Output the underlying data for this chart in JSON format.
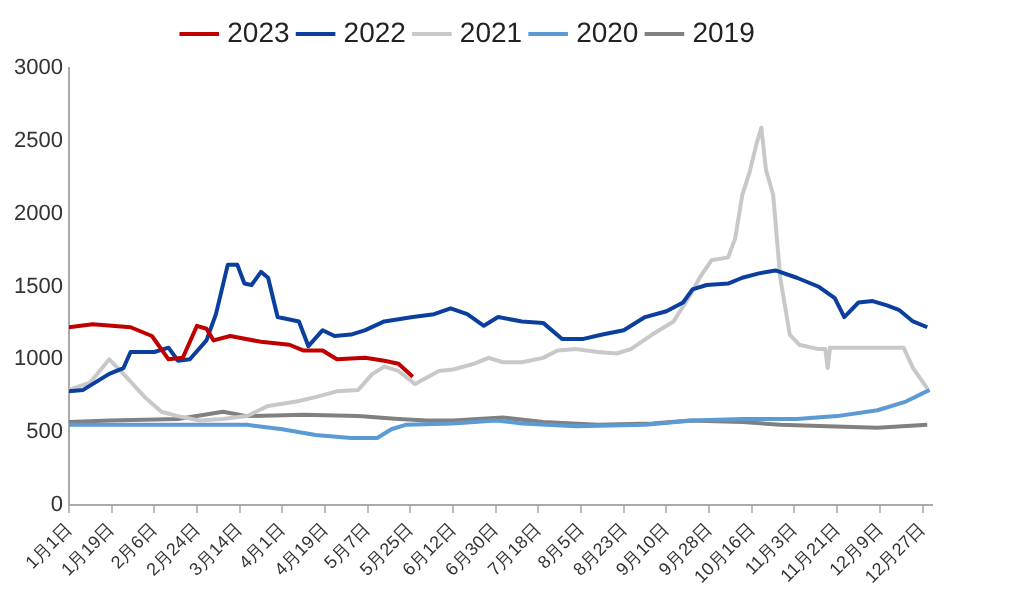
{
  "chart_data": {
    "type": "line",
    "marker": "none",
    "line_style": "solid",
    "legend": "top",
    "grid": false,
    "xlim": [
      "--01-01",
      "--12-31"
    ],
    "ylim": [
      0,
      3000
    ],
    "yticks": [
      0,
      500,
      1000,
      1500,
      2000,
      2500,
      3000
    ],
    "xticks": [
      {
        "value": "--01-01",
        "label": "1月1日"
      },
      {
        "value": "--01-19",
        "label": "1月19日"
      },
      {
        "value": "--02-06",
        "label": "2月6日"
      },
      {
        "value": "--02-24",
        "label": "2月24日"
      },
      {
        "value": "--03-14",
        "label": "3月14日"
      },
      {
        "value": "--04-01",
        "label": "4月1日"
      },
      {
        "value": "--04-19",
        "label": "4月19日"
      },
      {
        "value": "--05-07",
        "label": "5月7日"
      },
      {
        "value": "--05-25",
        "label": "5月25日"
      },
      {
        "value": "--06-12",
        "label": "6月12日"
      },
      {
        "value": "--06-30",
        "label": "6月30日"
      },
      {
        "value": "--07-18",
        "label": "7月18日"
      },
      {
        "value": "--08-05",
        "label": "8月5日"
      },
      {
        "value": "--08-23",
        "label": "8月23日"
      },
      {
        "value": "--09-10",
        "label": "9月10日"
      },
      {
        "value": "--09-28",
        "label": "9月28日"
      },
      {
        "value": "--10-16",
        "label": "10月16日"
      },
      {
        "value": "--11-03",
        "label": "11月3日"
      },
      {
        "value": "--11-21",
        "label": "11月21日"
      },
      {
        "value": "--12-09",
        "label": "12月9日"
      },
      {
        "value": "--12-27",
        "label": "12月27日"
      }
    ],
    "series": [
      {
        "name": "2023",
        "color": "#c00000",
        "x": [
          "--01-01",
          "--01-11",
          "--01-27",
          "--02-05",
          "--02-12",
          "--02-18",
          "--02-24",
          "--02-28",
          "--03-03",
          "--03-10",
          "--03-23",
          "--04-04",
          "--04-10",
          "--04-18",
          "--04-24",
          "--05-06",
          "--05-14",
          "--05-20",
          "--05-26"
        ],
        "values": [
          1220,
          1240,
          1220,
          1160,
          1000,
          1010,
          1230,
          1210,
          1130,
          1160,
          1120,
          1100,
          1060,
          1060,
          1000,
          1010,
          990,
          970,
          880
        ]
      },
      {
        "name": "2022",
        "color": "#0b3f9e",
        "x": [
          "--01-01",
          "--01-07",
          "--01-18",
          "--01-24",
          "--01-27",
          "--02-06",
          "--02-12",
          "--02-16",
          "--02-21",
          "--02-28",
          "--03-04",
          "--03-09",
          "--03-13",
          "--03-16",
          "--03-19",
          "--03-23",
          "--03-26",
          "--03-30",
          "--04-08",
          "--04-12",
          "--04-18",
          "--04-23",
          "--04-30",
          "--05-06",
          "--05-14",
          "--05-26",
          "--06-04",
          "--06-11",
          "--06-18",
          "--06-25",
          "--07-01",
          "--07-11",
          "--07-20",
          "--07-28",
          "--08-06",
          "--08-14",
          "--08-23",
          "--09-01",
          "--09-10",
          "--09-17",
          "--09-21",
          "--09-27",
          "--10-06",
          "--10-12",
          "--10-19",
          "--10-26",
          "--11-04",
          "--11-13",
          "--11-20",
          "--11-24",
          "--11-30",
          "--12-06",
          "--12-12",
          "--12-17",
          "--12-23",
          "--12-29"
        ],
        "values": [
          780,
          790,
          900,
          940,
          1050,
          1050,
          1080,
          990,
          1000,
          1130,
          1310,
          1650,
          1650,
          1520,
          1510,
          1600,
          1560,
          1290,
          1260,
          1090,
          1200,
          1160,
          1170,
          1200,
          1260,
          1290,
          1310,
          1350,
          1310,
          1230,
          1290,
          1260,
          1250,
          1140,
          1140,
          1170,
          1200,
          1290,
          1330,
          1390,
          1480,
          1510,
          1520,
          1560,
          1590,
          1610,
          1560,
          1500,
          1420,
          1290,
          1390,
          1400,
          1370,
          1340,
          1260,
          1220
        ]
      },
      {
        "name": "2021",
        "color": "#c8c8c8",
        "x": [
          "--01-01",
          "--01-10",
          "--01-18",
          "--01-24",
          "--02-02",
          "--02-09",
          "--02-16",
          "--02-25",
          "--03-07",
          "--03-17",
          "--03-26",
          "--04-07",
          "--04-15",
          "--04-24",
          "--05-03",
          "--05-09",
          "--05-14",
          "--05-20",
          "--05-27",
          "--06-06",
          "--06-12",
          "--06-21",
          "--06-27",
          "--07-03",
          "--07-11",
          "--07-20",
          "--07-26",
          "--08-03",
          "--08-12",
          "--08-20",
          "--08-26",
          "--09-04",
          "--09-13",
          "--09-20",
          "--09-24",
          "--09-29",
          "--10-06",
          "--10-09",
          "--10-12",
          "--10-15",
          "--10-18",
          "--10-20",
          "--10-22",
          "--10-25",
          "--10-28",
          "--11-01",
          "--11-05",
          "--11-13",
          "--11-16",
          "--11-17",
          "--11-18",
          "--12-03",
          "--12-19",
          "--12-23",
          "--12-29"
        ],
        "values": [
          790,
          840,
          1000,
          900,
          740,
          640,
          610,
          580,
          590,
          610,
          680,
          710,
          740,
          780,
          790,
          900,
          950,
          920,
          830,
          920,
          930,
          970,
          1010,
          980,
          980,
          1010,
          1060,
          1070,
          1050,
          1040,
          1070,
          1170,
          1260,
          1440,
          1560,
          1680,
          1700,
          1830,
          2130,
          2280,
          2480,
          2590,
          2300,
          2130,
          1560,
          1170,
          1100,
          1070,
          1070,
          940,
          1080,
          1080,
          1080,
          940,
          800
        ]
      },
      {
        "name": "2020",
        "color": "#5b9bd5",
        "x": [
          "--01-01",
          "--02-02",
          "--03-03",
          "--03-17",
          "--04-01",
          "--04-15",
          "--04-30",
          "--05-11",
          "--05-17",
          "--05-23",
          "--06-12",
          "--06-30",
          "--07-11",
          "--08-03",
          "--09-01",
          "--09-21",
          "--10-12",
          "--11-04",
          "--11-21",
          "--12-08",
          "--12-20",
          "--12-30"
        ],
        "values": [
          550,
          550,
          550,
          550,
          520,
          480,
          460,
          460,
          520,
          550,
          560,
          580,
          560,
          540,
          550,
          580,
          590,
          590,
          610,
          650,
          710,
          790
        ]
      },
      {
        "name": "2019",
        "color": "#808080",
        "x": [
          "--01-01",
          "--01-18",
          "--02-16",
          "--03-07",
          "--03-17",
          "--04-10",
          "--05-03",
          "--05-20",
          "--06-01",
          "--06-12",
          "--07-03",
          "--07-20",
          "--08-12",
          "--09-04",
          "--09-20",
          "--10-12",
          "--10-28",
          "--11-17",
          "--12-08",
          "--12-29"
        ],
        "values": [
          570,
          580,
          590,
          640,
          610,
          620,
          610,
          590,
          580,
          580,
          600,
          570,
          550,
          560,
          580,
          570,
          550,
          540,
          530,
          550
        ]
      }
    ]
  }
}
